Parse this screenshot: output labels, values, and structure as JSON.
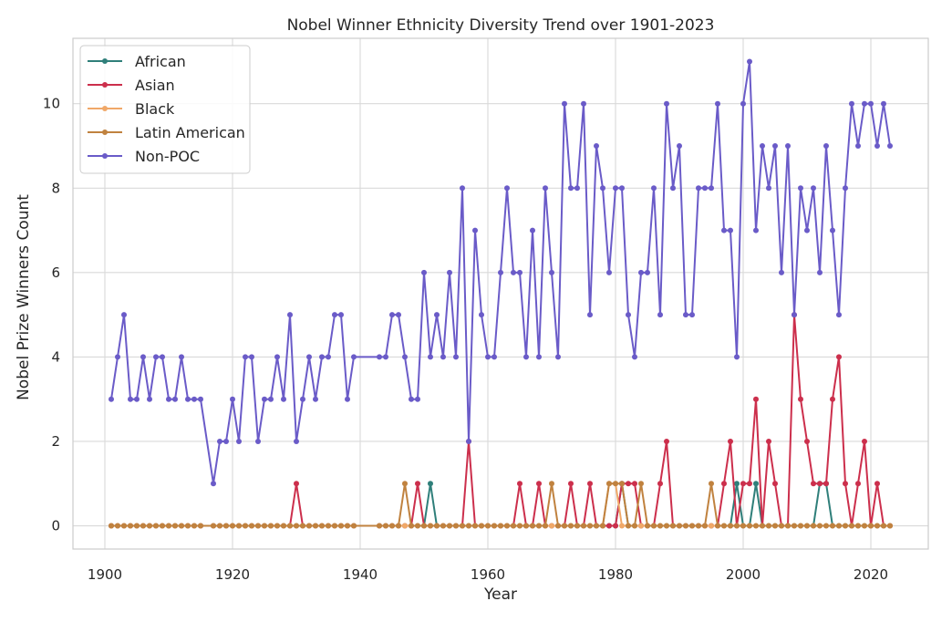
{
  "chart_data": {
    "type": "line",
    "title": "Nobel Winner Ethnicity Diversity Trend over 1901-2023",
    "xlabel": "Year",
    "ylabel": "Nobel Prize Winners Count",
    "xlim": [
      1895,
      2029
    ],
    "ylim": [
      -0.55,
      11.55
    ],
    "x_ticks": [
      1900,
      1920,
      1940,
      1960,
      1980,
      2000,
      2020
    ],
    "y_ticks": [
      0,
      2,
      4,
      6,
      8,
      10
    ],
    "grid": true,
    "legend_position": "top-left",
    "x": [
      1901,
      1902,
      1903,
      1904,
      1905,
      1906,
      1907,
      1908,
      1909,
      1910,
      1911,
      1912,
      1913,
      1914,
      1915,
      1917,
      1918,
      1919,
      1920,
      1921,
      1922,
      1923,
      1924,
      1925,
      1926,
      1927,
      1928,
      1929,
      1930,
      1931,
      1932,
      1933,
      1934,
      1935,
      1936,
      1937,
      1938,
      1939,
      1943,
      1944,
      1945,
      1946,
      1947,
      1948,
      1949,
      1950,
      1951,
      1952,
      1953,
      1954,
      1955,
      1956,
      1957,
      1958,
      1959,
      1960,
      1961,
      1962,
      1963,
      1964,
      1965,
      1966,
      1967,
      1968,
      1969,
      1970,
      1971,
      1972,
      1973,
      1974,
      1975,
      1976,
      1977,
      1978,
      1979,
      1980,
      1981,
      1982,
      1983,
      1984,
      1985,
      1986,
      1987,
      1988,
      1989,
      1990,
      1991,
      1992,
      1993,
      1994,
      1995,
      1996,
      1997,
      1998,
      1999,
      2000,
      2001,
      2002,
      2003,
      2004,
      2005,
      2006,
      2007,
      2008,
      2009,
      2010,
      2011,
      2012,
      2013,
      2014,
      2015,
      2016,
      2017,
      2018,
      2019,
      2020,
      2021,
      2022,
      2023
    ],
    "series": [
      {
        "name": "African",
        "color": "#2f7f7a",
        "values": [
          0,
          0,
          0,
          0,
          0,
          0,
          0,
          0,
          0,
          0,
          0,
          0,
          0,
          0,
          0,
          0,
          0,
          0,
          0,
          0,
          0,
          0,
          0,
          0,
          0,
          0,
          0,
          0,
          0,
          0,
          0,
          0,
          0,
          0,
          0,
          0,
          0,
          0,
          0,
          0,
          0,
          0,
          0,
          0,
          0,
          0,
          1,
          0,
          0,
          0,
          0,
          0,
          0,
          0,
          0,
          0,
          0,
          0,
          0,
          0,
          0,
          0,
          0,
          0,
          0,
          0,
          0,
          0,
          0,
          0,
          0,
          0,
          0,
          0,
          0,
          0,
          1,
          0,
          0,
          0,
          0,
          0,
          0,
          0,
          0,
          0,
          0,
          0,
          0,
          0,
          0,
          0,
          0,
          0,
          1,
          0,
          0,
          1,
          0,
          0,
          0,
          0,
          0,
          0,
          0,
          0,
          0,
          1,
          1,
          0,
          0,
          0,
          0,
          0,
          0,
          0,
          0,
          0,
          0
        ]
      },
      {
        "name": "Asian",
        "color": "#cc2f4c",
        "values": [
          0,
          0,
          0,
          0,
          0,
          0,
          0,
          0,
          0,
          0,
          0,
          0,
          0,
          0,
          0,
          0,
          0,
          0,
          0,
          0,
          0,
          0,
          0,
          0,
          0,
          0,
          0,
          0,
          1,
          0,
          0,
          0,
          0,
          0,
          0,
          0,
          0,
          0,
          0,
          0,
          0,
          0,
          0,
          0,
          1,
          0,
          0,
          0,
          0,
          0,
          0,
          0,
          2,
          0,
          0,
          0,
          0,
          0,
          0,
          0,
          1,
          0,
          0,
          1,
          0,
          0,
          0,
          0,
          1,
          0,
          0,
          1,
          0,
          0,
          0,
          0,
          1,
          1,
          1,
          0,
          0,
          0,
          1,
          2,
          0,
          0,
          0,
          0,
          0,
          0,
          0,
          0,
          1,
          2,
          0,
          1,
          1,
          3,
          0,
          2,
          1,
          0,
          0,
          5,
          3,
          2,
          1,
          1,
          1,
          3,
          4,
          1,
          0,
          1,
          2,
          0,
          1,
          0,
          0
        ]
      },
      {
        "name": "Black",
        "color": "#f0a868",
        "values": [
          0,
          0,
          0,
          0,
          0,
          0,
          0,
          0,
          0,
          0,
          0,
          0,
          0,
          0,
          0,
          0,
          0,
          0,
          0,
          0,
          0,
          0,
          0,
          0,
          0,
          0,
          0,
          0,
          0,
          0,
          0,
          0,
          0,
          0,
          0,
          0,
          0,
          0,
          0,
          0,
          0,
          0,
          0,
          0,
          0,
          0,
          0,
          0,
          0,
          0,
          0,
          0,
          0,
          0,
          0,
          0,
          0,
          0,
          0,
          0,
          0,
          0,
          0,
          0,
          0,
          0,
          0,
          0,
          0,
          0,
          0,
          0,
          0,
          0,
          1,
          1,
          0,
          0,
          0,
          0,
          0,
          0,
          0,
          0,
          0,
          0,
          0,
          0,
          0,
          0,
          0,
          0,
          0,
          0,
          0,
          0,
          0,
          0,
          0,
          0,
          0,
          0,
          0,
          0,
          0,
          0,
          0,
          0,
          0,
          0,
          0,
          0,
          0,
          0,
          0,
          0,
          0,
          0,
          0
        ]
      },
      {
        "name": "Latin American",
        "color": "#c0823f",
        "values": [
          0,
          0,
          0,
          0,
          0,
          0,
          0,
          0,
          0,
          0,
          0,
          0,
          0,
          0,
          0,
          0,
          0,
          0,
          0,
          0,
          0,
          0,
          0,
          0,
          0,
          0,
          0,
          0,
          0,
          0,
          0,
          0,
          0,
          0,
          0,
          0,
          0,
          0,
          0,
          0,
          0,
          0,
          1,
          0,
          0,
          0,
          0,
          0,
          0,
          0,
          0,
          0,
          0,
          0,
          0,
          0,
          0,
          0,
          0,
          0,
          0,
          0,
          0,
          0,
          0,
          1,
          0,
          0,
          0,
          0,
          0,
          0,
          0,
          0,
          1,
          1,
          1,
          0,
          0,
          1,
          0,
          0,
          0,
          0,
          0,
          0,
          0,
          0,
          0,
          0,
          1,
          0,
          0,
          0,
          0,
          0,
          0,
          0,
          0,
          0,
          0,
          0,
          0,
          0,
          0,
          0,
          0,
          0,
          0,
          0,
          0,
          0,
          0,
          0,
          0,
          0,
          0,
          0,
          0
        ]
      },
      {
        "name": "Non-POC",
        "color": "#6a5bc8",
        "values": [
          3,
          4,
          5,
          3,
          3,
          4,
          3,
          4,
          4,
          3,
          3,
          4,
          3,
          3,
          3,
          1,
          2,
          2,
          3,
          2,
          4,
          4,
          2,
          3,
          3,
          4,
          3,
          5,
          2,
          3,
          4,
          3,
          4,
          4,
          5,
          5,
          3,
          4,
          4,
          4,
          5,
          5,
          4,
          3,
          3,
          6,
          4,
          5,
          4,
          6,
          4,
          8,
          2,
          7,
          5,
          4,
          4,
          6,
          8,
          6,
          6,
          4,
          7,
          4,
          8,
          6,
          4,
          10,
          8,
          8,
          10,
          5,
          9,
          8,
          6,
          8,
          8,
          5,
          4,
          6,
          6,
          8,
          5,
          10,
          8,
          9,
          5,
          5,
          8,
          8,
          8,
          10,
          7,
          7,
          4,
          10,
          11,
          7,
          9,
          8,
          9,
          6,
          9,
          5,
          8,
          7,
          8,
          6,
          9,
          7,
          5,
          8,
          10,
          9,
          10,
          10,
          9,
          10,
          9
        ]
      }
    ]
  }
}
